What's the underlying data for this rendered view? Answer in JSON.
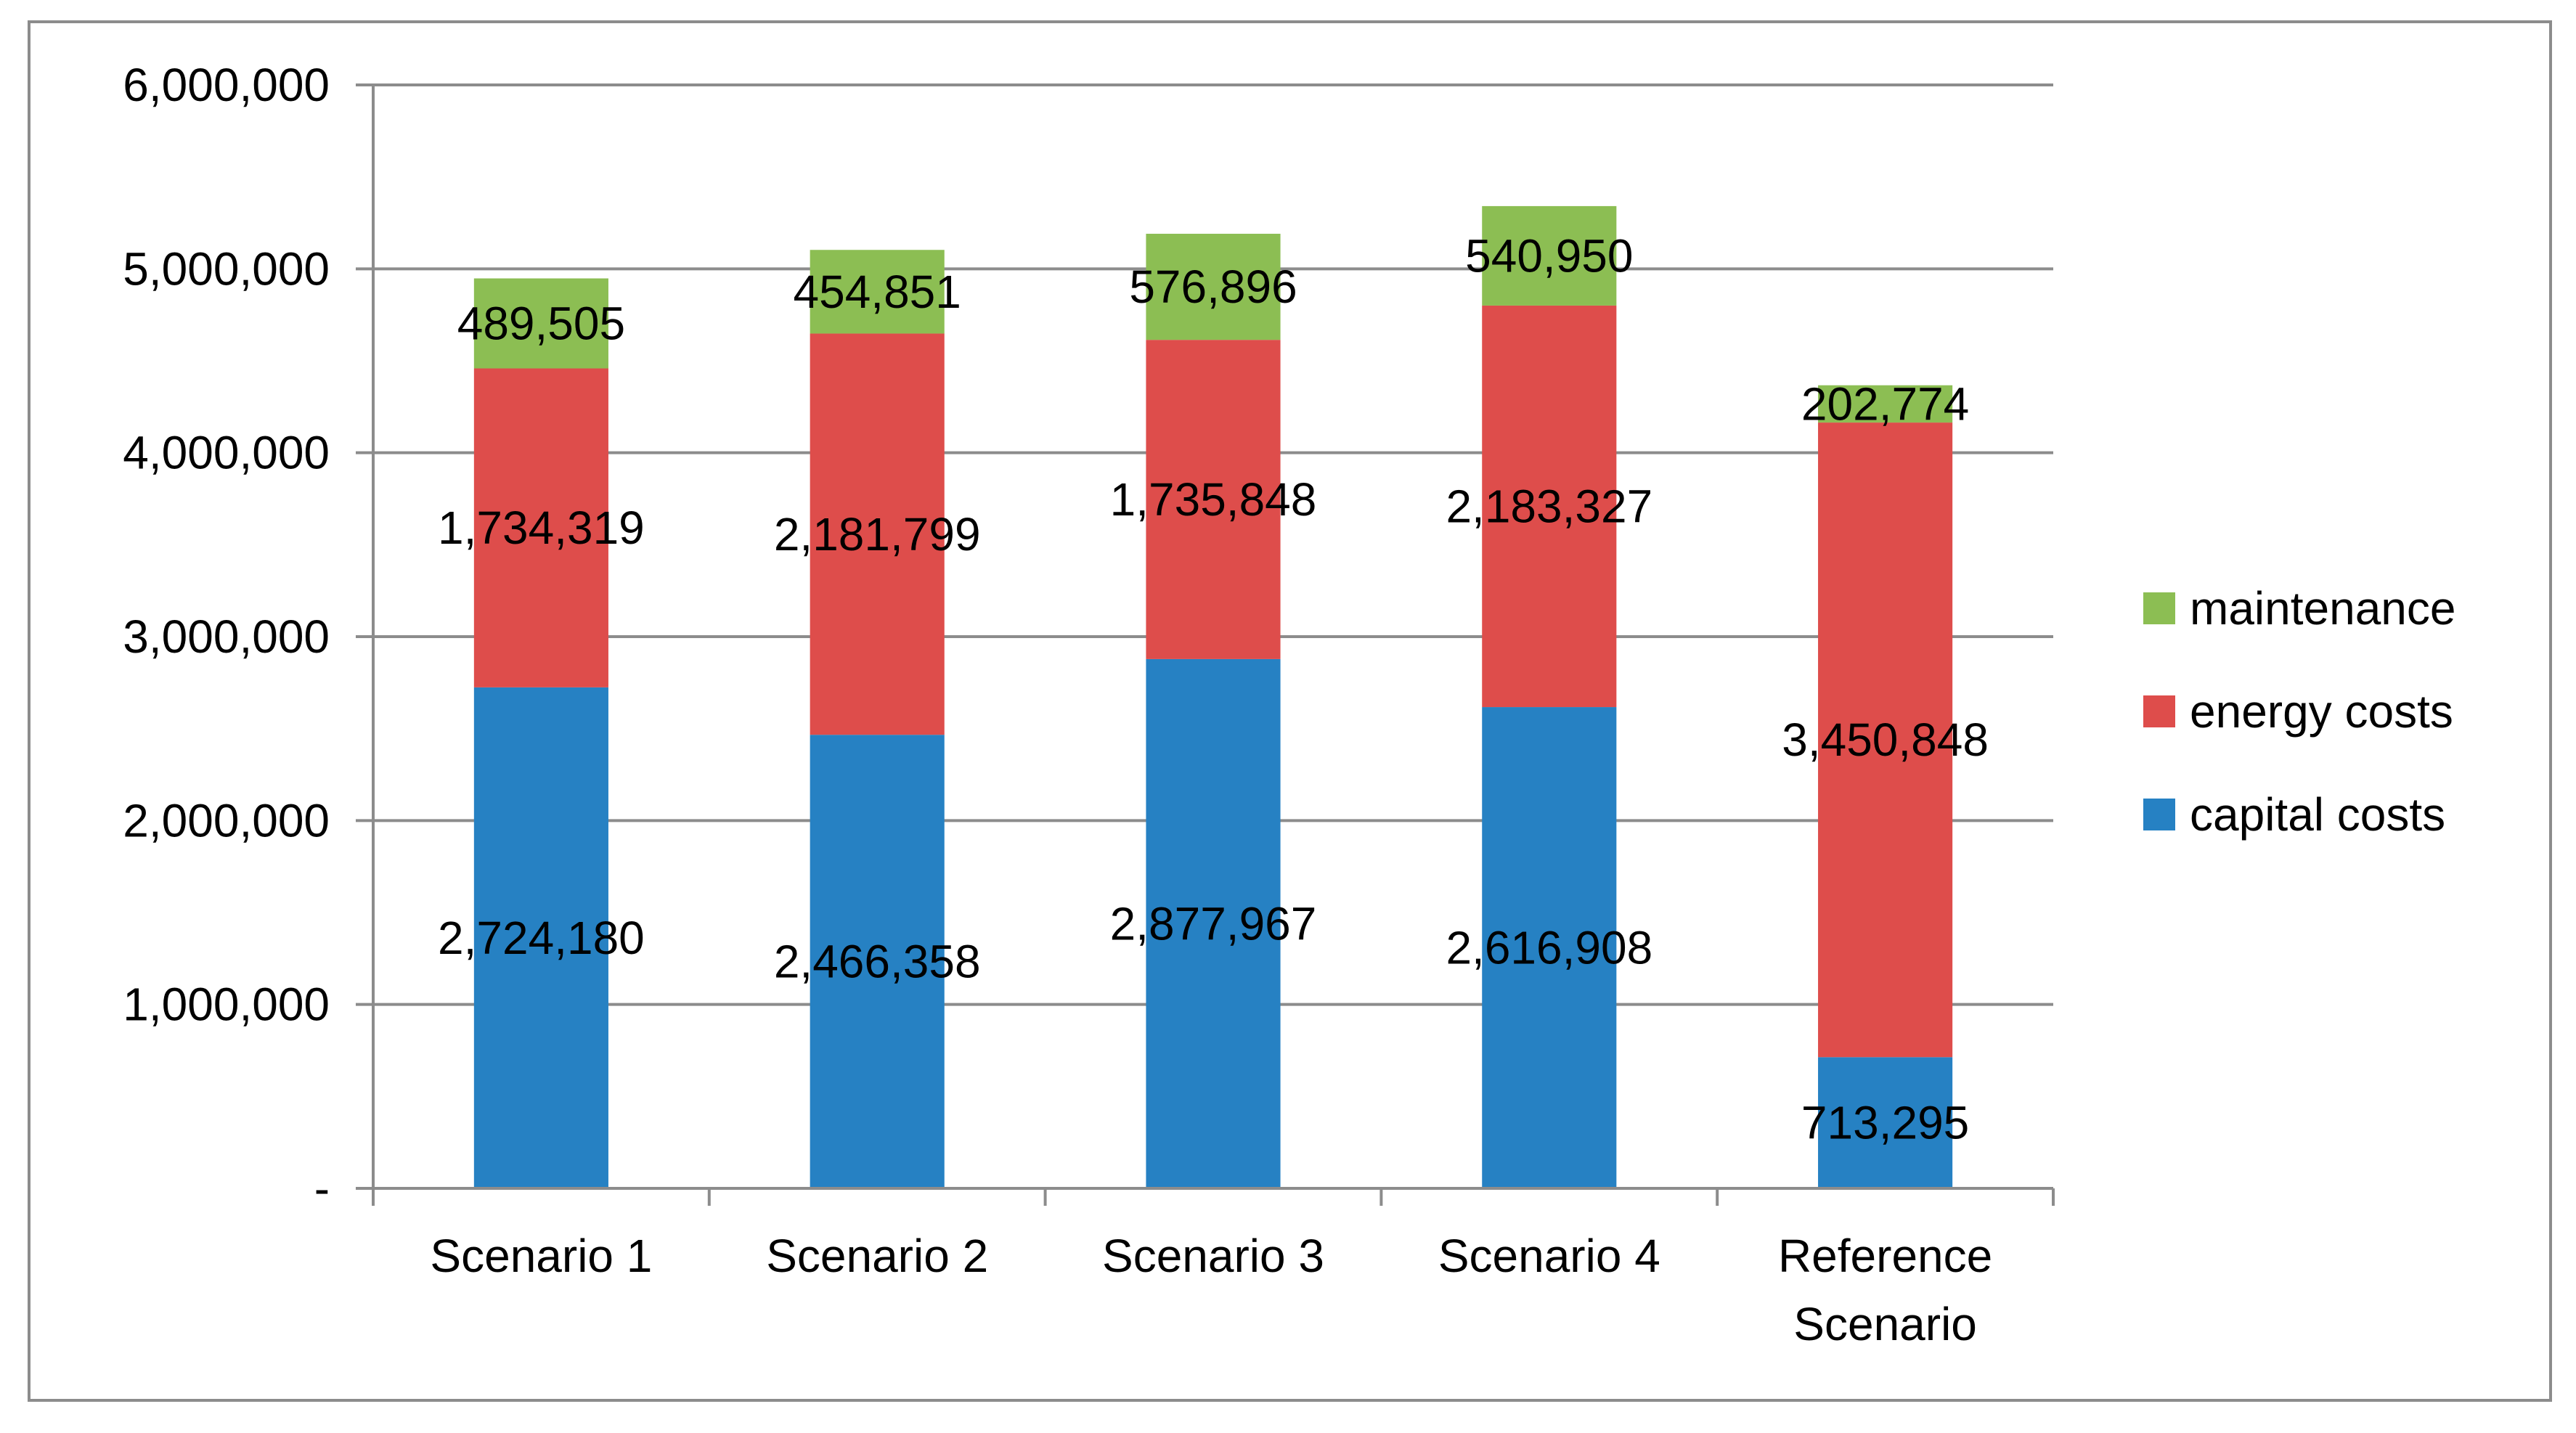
{
  "chart_data": {
    "type": "bar",
    "stacked": true,
    "title": "",
    "xlabel": "",
    "ylabel": "",
    "categories": [
      [
        "Scenario 1"
      ],
      [
        "Scenario 2"
      ],
      [
        "Scenario 3"
      ],
      [
        "Scenario 4"
      ],
      [
        "Reference",
        "Scenario"
      ]
    ],
    "series": [
      {
        "name": "capital costs",
        "color": "#2681C3",
        "values": [
          2724180,
          2466358,
          2877967,
          2616908,
          713295
        ],
        "labels": [
          "2,724,180",
          "2,466,358",
          "2,877,967",
          "2,616,908",
          "713,295"
        ]
      },
      {
        "name": "energy costs",
        "color": "#DE4D4B",
        "values": [
          1734319,
          2181799,
          1735848,
          2183327,
          3450848
        ],
        "labels": [
          "1,734,319",
          "2,181,799",
          "1,735,848",
          "2,183,327",
          "3,450,848"
        ]
      },
      {
        "name": "maintenance",
        "color": "#8CBE53",
        "values": [
          489505,
          454851,
          576896,
          540950,
          202774
        ],
        "labels": [
          "489,505",
          "454,851",
          "576,896",
          "540,950",
          "202,774"
        ]
      }
    ],
    "ylim": [
      0,
      6000000
    ],
    "yticks": [
      0,
      1000000,
      2000000,
      3000000,
      4000000,
      5000000,
      6000000
    ],
    "ytick_labels": [
      "-",
      "1,000,000",
      "2,000,000",
      "3,000,000",
      "4,000,000",
      "5,000,000",
      "6,000,000"
    ],
    "legend": {
      "position": "right",
      "order": [
        "maintenance",
        "energy costs",
        "capital costs"
      ]
    },
    "grid": true
  }
}
